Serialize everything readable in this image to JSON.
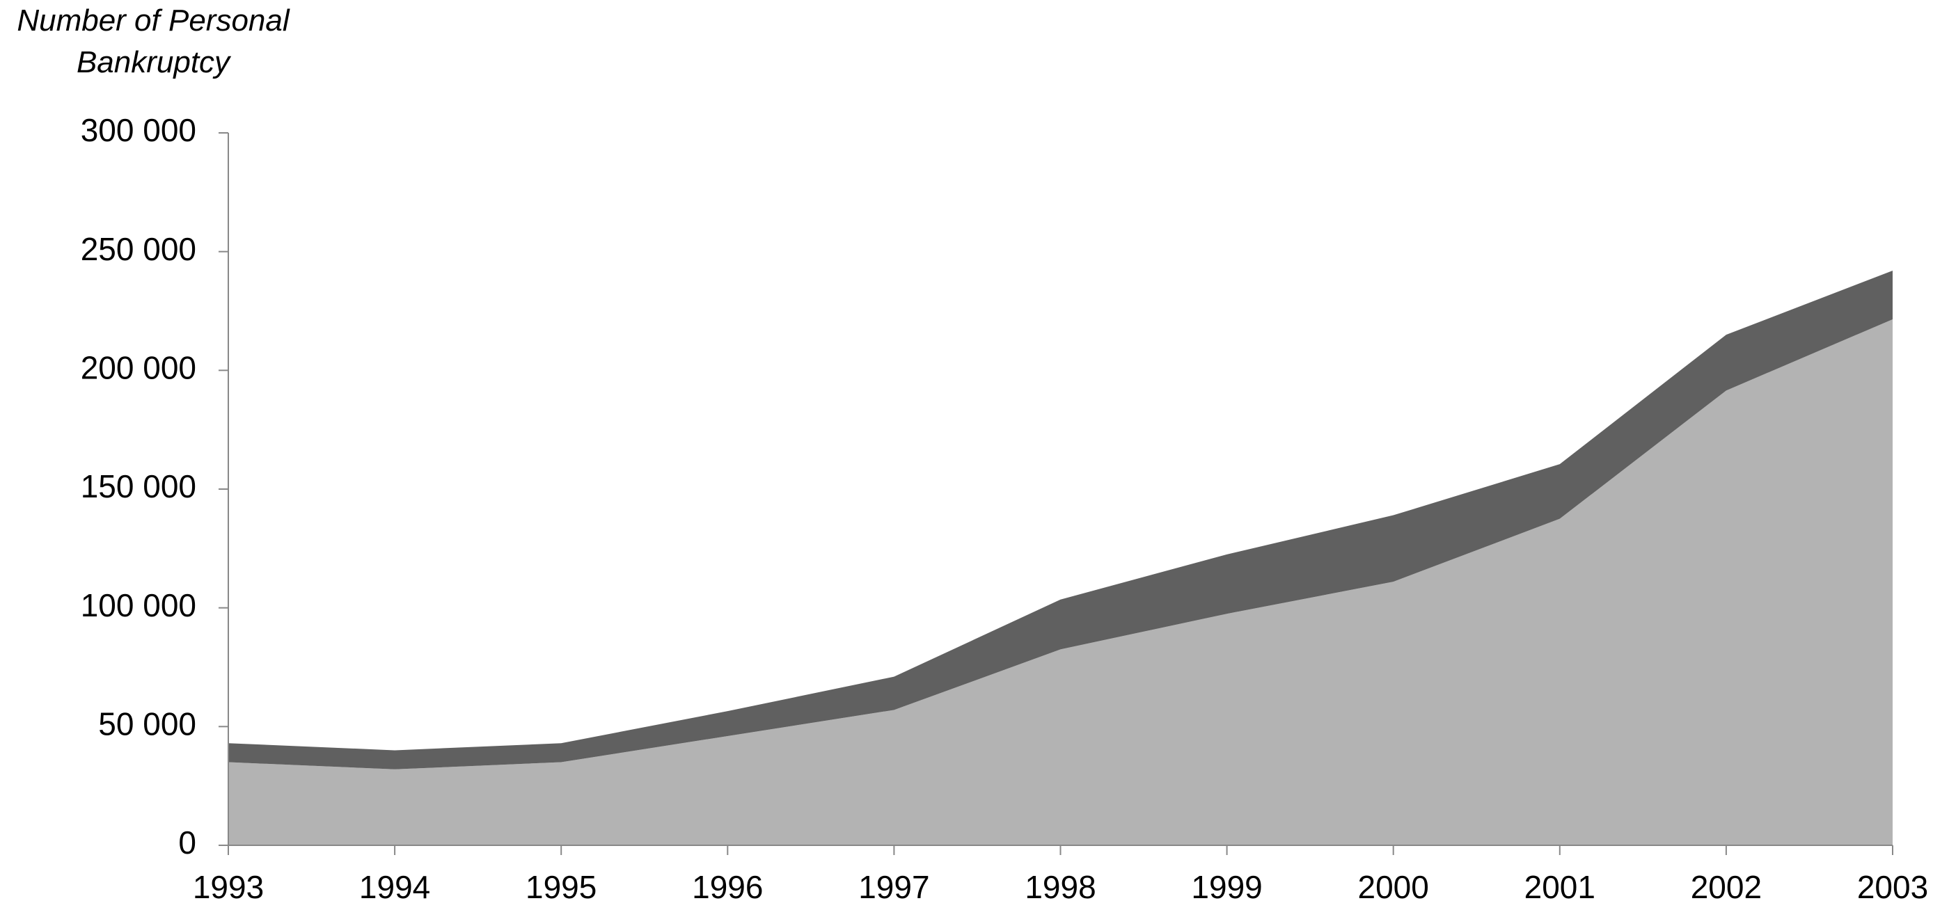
{
  "chart_data": {
    "type": "stacked_area",
    "title": "Number of Personal Bankruptcy",
    "categories": [
      "1993",
      "1994",
      "1995",
      "1996",
      "1997",
      "1998",
      "1999",
      "2000",
      "2001",
      "2002",
      "2003"
    ],
    "series": [
      {
        "color": "#b3b3b3",
        "values": [
          35000,
          32000,
          35000,
          46000,
          57000,
          82500,
          97500,
          111000,
          137500,
          191500,
          221500
        ]
      },
      {
        "color": "#606060",
        "values": [
          8000,
          8000,
          8000,
          10500,
          14000,
          21000,
          25000,
          28000,
          23000,
          23500,
          20500
        ]
      }
    ],
    "ylim": [
      0,
      300000
    ],
    "yticks": [
      0,
      {
        "value": 50000,
        "label": "50 000"
      },
      {
        "value": 100000,
        "label": "100 000"
      },
      {
        "value": 150000,
        "label": "150 000"
      },
      {
        "value": 200000,
        "label": "200 000"
      },
      {
        "value": 250000,
        "label": "250 000"
      },
      {
        "value": 300000,
        "label": "300 000"
      }
    ],
    "grid": false
  }
}
